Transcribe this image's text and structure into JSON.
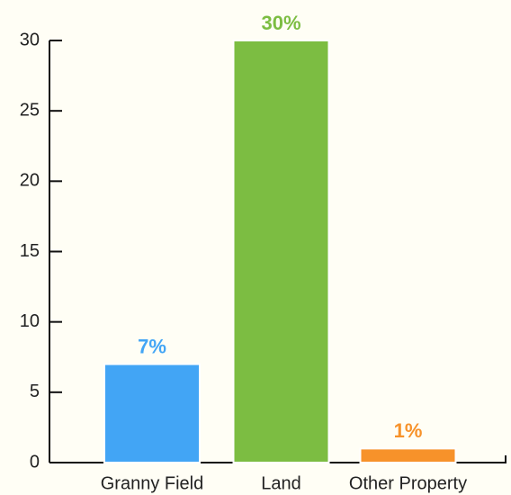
{
  "chart_data": {
    "type": "bar",
    "categories": [
      "Granny Field",
      "Land",
      "Other Property"
    ],
    "values": [
      7,
      30,
      1
    ],
    "value_labels": [
      "7%",
      "30%",
      "1%"
    ],
    "colors": [
      "#42a5f5",
      "#7cbd42",
      "#f7922a"
    ],
    "ylim": [
      0,
      30
    ],
    "yticks": [
      0,
      5,
      10,
      15,
      20,
      25,
      30
    ]
  }
}
